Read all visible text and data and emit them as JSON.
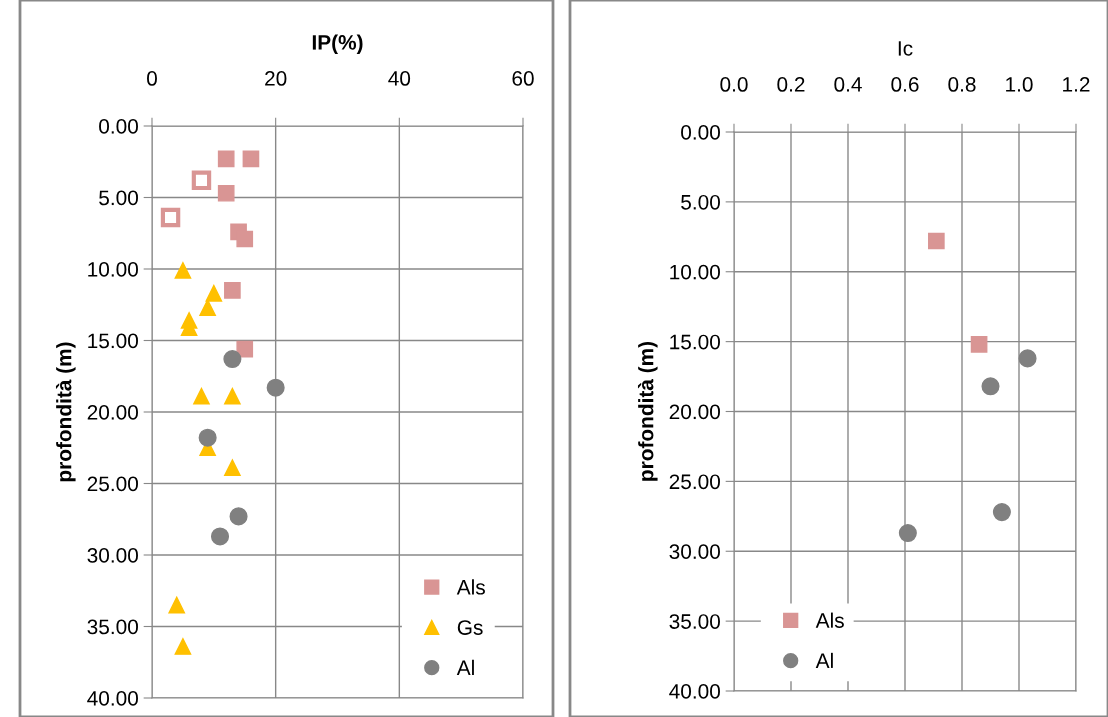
{
  "chart_data": [
    {
      "type": "scatter",
      "title": "IP(%)",
      "ylabel": "profondità (m)",
      "xlim": [
        0,
        60
      ],
      "xticks": [
        0,
        20,
        40,
        60
      ],
      "ylim": [
        40,
        0
      ],
      "yticks": [
        {
          "value": 0,
          "label": "0.00"
        },
        {
          "value": 5,
          "label": "5.00"
        },
        {
          "value": 10,
          "label": "10.00"
        },
        {
          "value": 15,
          "label": "15.00"
        },
        {
          "value": 20,
          "label": "20.00"
        },
        {
          "value": 25,
          "label": "25.00"
        },
        {
          "value": 30,
          "label": "30.00"
        },
        {
          "value": 35,
          "label": "35.00"
        },
        {
          "value": 40,
          "label": "40.00"
        }
      ],
      "grid": true,
      "legend": "bottom right",
      "series": [
        {
          "name": "Als",
          "color": "#d99594",
          "marker": "square",
          "x": [
            12,
            16,
            12,
            14,
            15,
            13,
            15
          ],
          "values": [
            2.3,
            2.3,
            4.7,
            7.4,
            7.9,
            11.5,
            15.6
          ]
        },
        {
          "color": "#d99594",
          "marker": "square",
          "x": [
            8,
            3
          ],
          "values": [
            3.8,
            6.4
          ]
        },
        {
          "name": "Gs",
          "color": "#ffc000",
          "marker": "triangle",
          "x": [
            5,
            10,
            9,
            6,
            6,
            8,
            13,
            9,
            13,
            4,
            5
          ],
          "values": [
            10.1,
            11.7,
            12.7,
            13.6,
            14.1,
            18.9,
            18.9,
            22.5,
            23.9,
            33.5,
            36.4
          ]
        },
        {
          "name": "Al",
          "color": "#808080",
          "marker": "circle",
          "x": [
            13,
            20,
            9,
            14,
            11
          ],
          "values": [
            16.3,
            18.3,
            21.8,
            27.3,
            28.7
          ]
        }
      ]
    },
    {
      "type": "scatter",
      "title": "Ic",
      "ylabel": "profondità (m)",
      "xlim": [
        0,
        1.2
      ],
      "xticks": [
        {
          "value": 0,
          "label": "0.0"
        },
        {
          "value": 0.2,
          "label": "0.2"
        },
        {
          "value": 0.4,
          "label": "0.4"
        },
        {
          "value": 0.6,
          "label": "0.6"
        },
        {
          "value": 0.8,
          "label": "0.8"
        },
        {
          "value": 1.0,
          "label": "1.0"
        },
        {
          "value": 1.2,
          "label": "1.2"
        }
      ],
      "ylim": [
        40,
        0
      ],
      "yticks": [
        {
          "value": 0,
          "label": "0.00"
        },
        {
          "value": 5,
          "label": "5.00"
        },
        {
          "value": 10,
          "label": "10.00"
        },
        {
          "value": 15,
          "label": "15.00"
        },
        {
          "value": 20,
          "label": "20.00"
        },
        {
          "value": 25,
          "label": "25.00"
        },
        {
          "value": 30,
          "label": "30.00"
        },
        {
          "value": 35,
          "label": "35.00"
        },
        {
          "value": 40,
          "label": "40.00"
        }
      ],
      "grid": true,
      "legend": "bottom left",
      "series": [
        {
          "name": "Als",
          "color": "#d99594",
          "marker": "square",
          "x": [
            0.71,
            0.86
          ],
          "values": [
            7.8,
            15.2
          ]
        },
        {
          "name": "Al",
          "color": "#808080",
          "marker": "circle",
          "x": [
            1.03,
            0.9,
            0.94,
            0.61
          ],
          "values": [
            16.2,
            18.2,
            27.2,
            28.7
          ]
        }
      ]
    }
  ]
}
